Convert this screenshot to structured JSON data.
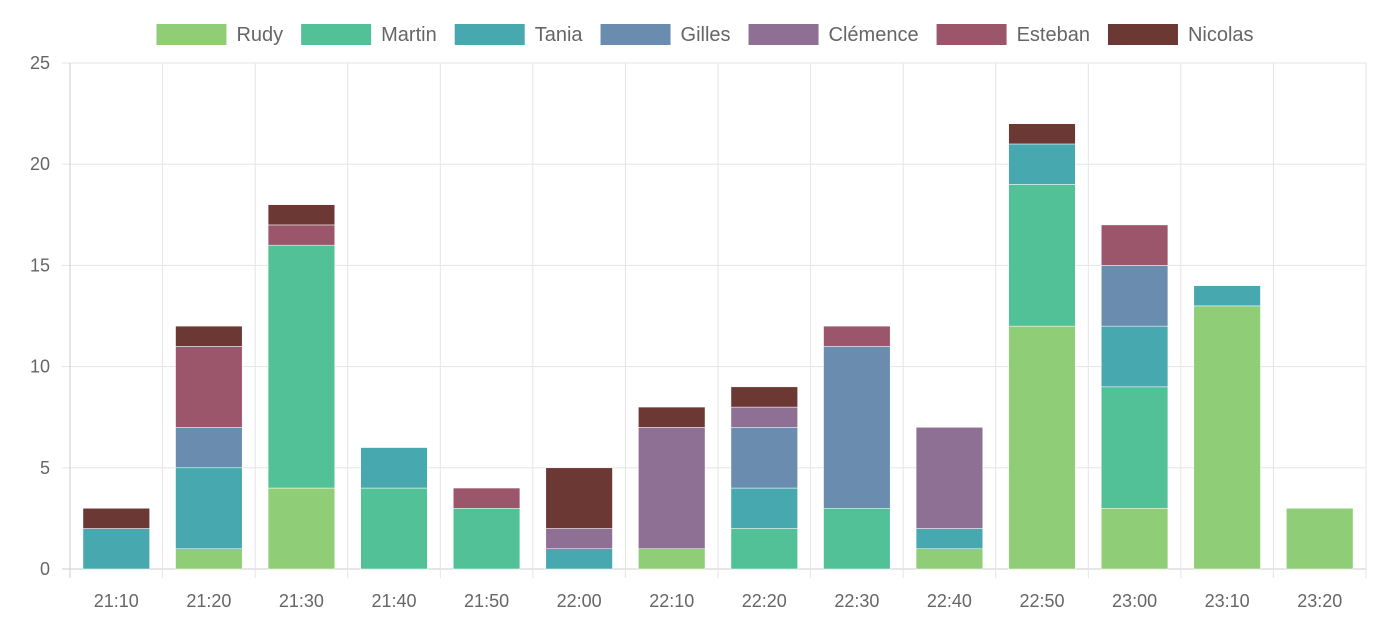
{
  "chart_data": {
    "type": "bar",
    "stacked": true,
    "title": "",
    "xlabel": "",
    "ylabel": "",
    "ylim": [
      0,
      25
    ],
    "yticks": [
      0,
      5,
      10,
      15,
      20,
      25
    ],
    "grid": true,
    "legend_position": "top",
    "categories": [
      "21:10",
      "21:20",
      "21:30",
      "21:40",
      "21:50",
      "22:00",
      "22:10",
      "22:20",
      "22:30",
      "22:40",
      "22:50",
      "23:00",
      "23:10",
      "23:20"
    ],
    "series": [
      {
        "name": "Rudy",
        "color": "#8fce77",
        "values": [
          0,
          1,
          4,
          0,
          0,
          0,
          1,
          0,
          0,
          1,
          12,
          3,
          13,
          3
        ]
      },
      {
        "name": "Martin",
        "color": "#52c197",
        "values": [
          0,
          0,
          12,
          4,
          3,
          0,
          0,
          2,
          3,
          0,
          7,
          6,
          0,
          0
        ]
      },
      {
        "name": "Tania",
        "color": "#47a8b0",
        "values": [
          2,
          4,
          0,
          2,
          0,
          1,
          0,
          2,
          0,
          1,
          2,
          3,
          1,
          0
        ]
      },
      {
        "name": "Gilles",
        "color": "#6a8caf",
        "values": [
          0,
          2,
          0,
          0,
          0,
          0,
          0,
          3,
          8,
          0,
          0,
          3,
          0,
          0
        ]
      },
      {
        "name": "Clémence",
        "color": "#8e7094",
        "values": [
          0,
          0,
          0,
          0,
          0,
          1,
          6,
          1,
          0,
          5,
          0,
          0,
          0,
          0
        ]
      },
      {
        "name": "Esteban",
        "color": "#9b566b",
        "values": [
          0,
          4,
          1,
          0,
          1,
          0,
          0,
          0,
          1,
          0,
          0,
          2,
          0,
          0
        ]
      },
      {
        "name": "Nicolas",
        "color": "#6b3834",
        "values": [
          1,
          1,
          1,
          0,
          0,
          3,
          1,
          1,
          0,
          0,
          1,
          0,
          0,
          0
        ]
      }
    ]
  }
}
